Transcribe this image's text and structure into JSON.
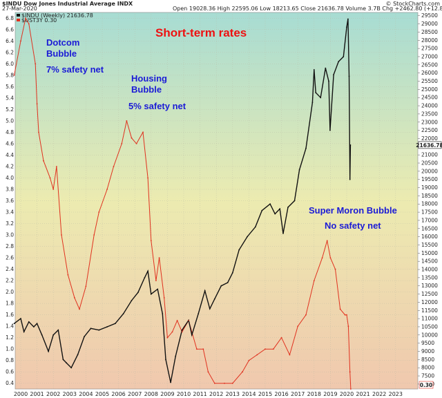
{
  "header": {
    "symbol_line": "$INDU Dow Jones Industrial Average INDX",
    "date": "27-Mar-2020",
    "ohlc": "Open 19028.36  High 22595.06  Low 18213.65  Close 21636.78  Volume 3.7B  Chg +2462.80 (+12.84%)",
    "credit": "© StockCharts.com"
  },
  "legend": {
    "indu": "$INDU (Weekly) 21636.78",
    "ust": "$UST3Y 0.30"
  },
  "colors": {
    "indu": "#111111",
    "rates": "#e0301e",
    "annotation_blue": "#1b1bd6",
    "annotation_red": "#ee1111",
    "bg_top": "#a7dcd3",
    "bg_mid": "#ecebb0",
    "bg_bottom": "#f0c8ae"
  },
  "annotations": {
    "title": "Short-term rates",
    "dotcom_1": "Dotcom",
    "dotcom_2": "Bubble",
    "dotcom_3": "7% safety net",
    "housing_1": "Housing",
    "housing_2": "Bubble",
    "housing_3": "5% safety net",
    "moron_1": "Super Moron Bubble",
    "moron_2": "No safety net"
  },
  "last_values": {
    "indu": "21636.78",
    "rate": "0.30"
  },
  "chart_data": {
    "type": "line",
    "x_ticks": [
      "2000",
      "2001",
      "2002",
      "2003",
      "2004",
      "2005",
      "2006",
      "2007",
      "2008",
      "2009",
      "2010",
      "2011",
      "2012",
      "2013",
      "2014",
      "2015",
      "2016",
      "2017",
      "2018",
      "2019",
      "2020",
      "2021",
      "2022",
      "2023"
    ],
    "left_axis": {
      "ticks": [
        "0.4",
        "0.6",
        "0.8",
        "1.0",
        "1.2",
        "1.4",
        "1.6",
        "1.8",
        "2.0",
        "2.2",
        "2.4",
        "2.6",
        "2.8",
        "3.0",
        "3.2",
        "3.4",
        "3.6",
        "3.8",
        "4.0",
        "4.2",
        "4.4",
        "4.6",
        "4.8",
        "5.0",
        "5.2",
        "5.4",
        "5.6",
        "5.8",
        "6.0",
        "6.2",
        "6.4",
        "6.6",
        "6.8"
      ],
      "range": [
        0.3,
        6.9
      ]
    },
    "right_axis": {
      "ticks": [
        "7000",
        "7500",
        "8000",
        "8500",
        "9000",
        "9500",
        "10000",
        "10500",
        "11000",
        "11500",
        "12000",
        "12500",
        "13000",
        "13500",
        "14000",
        "14500",
        "15000",
        "15500",
        "16000",
        "16500",
        "17000",
        "17500",
        "18000",
        "18500",
        "19000",
        "19500",
        "20000",
        "20500",
        "21000",
        "21500",
        "22000",
        "22500",
        "23000",
        "23500",
        "24000",
        "24500",
        "25000",
        "25500",
        "26000",
        "26500",
        "27000",
        "27500",
        "28000",
        "28500",
        "29000",
        "29500"
      ],
      "range": [
        6700,
        29700
      ],
      "scale": "linear"
    },
    "series": [
      {
        "name": "$INDU (Weekly) 21636.78",
        "axis": "right",
        "x": [
          1999.6,
          2000.0,
          2000.2,
          2000.5,
          2000.8,
          2001.0,
          2001.3,
          2001.7,
          2002.0,
          2002.3,
          2002.6,
          2002.8,
          2003.1,
          2003.5,
          2003.9,
          2004.3,
          2004.8,
          2005.3,
          2005.8,
          2006.3,
          2006.8,
          2007.2,
          2007.6,
          2007.8,
          2008.0,
          2008.4,
          2008.7,
          2008.9,
          2009.2,
          2009.5,
          2009.9,
          2010.3,
          2010.5,
          2010.9,
          2011.3,
          2011.6,
          2011.9,
          2012.3,
          2012.7,
          2013.0,
          2013.4,
          2013.9,
          2014.4,
          2014.8,
          2015.3,
          2015.6,
          2015.9,
          2016.1,
          2016.4,
          2016.8,
          2017.1,
          2017.5,
          2017.9,
          2018.0,
          2018.1,
          2018.4,
          2018.7,
          2018.9,
          2018.98,
          2019.2,
          2019.5,
          2019.8,
          2020.0,
          2020.08,
          2020.15,
          2020.2,
          2020.23
        ],
        "values": [
          10700,
          11000,
          10200,
          10800,
          10500,
          10700,
          10000,
          9000,
          10000,
          10300,
          8500,
          8300,
          8000,
          8800,
          9900,
          10400,
          10300,
          10500,
          10700,
          11300,
          12100,
          12600,
          13500,
          13900,
          12500,
          12800,
          11300,
          8500,
          7100,
          8700,
          10300,
          10900,
          10000,
          11300,
          12700,
          11600,
          12200,
          13000,
          13200,
          13800,
          15200,
          16000,
          16600,
          17600,
          18000,
          17400,
          17700,
          16200,
          17800,
          18200,
          20100,
          21400,
          24200,
          26200,
          24800,
          24500,
          26300,
          25500,
          22500,
          25900,
          26700,
          27000,
          28800,
          29300,
          25800,
          19500,
          21600
        ]
      },
      {
        "name": "$UST3Y 0.30",
        "axis": "left",
        "x": [
          1999.6,
          2000.0,
          2000.3,
          2000.5,
          2000.9,
          2001.0,
          2001.1,
          2001.4,
          2001.8,
          2002.0,
          2002.2,
          2002.5,
          2002.9,
          2003.3,
          2003.6,
          2004.0,
          2004.5,
          2004.8,
          2005.3,
          2005.7,
          2006.2,
          2006.5,
          2006.8,
          2007.1,
          2007.5,
          2007.8,
          2008.0,
          2008.3,
          2008.5,
          2008.8,
          2009.0,
          2009.3,
          2009.6,
          2009.9,
          2010.3,
          2010.8,
          2011.2,
          2011.5,
          2011.9,
          2012.5,
          2013.0,
          2013.6,
          2014.0,
          2014.5,
          2015.0,
          2015.5,
          2016.0,
          2016.5,
          2017.0,
          2017.5,
          2018.0,
          2018.5,
          2018.8,
          2019.0,
          2019.3,
          2019.6,
          2019.9,
          2020.0,
          2020.1,
          2020.2,
          2020.25
        ],
        "values": [
          5.8,
          6.4,
          6.8,
          6.7,
          6.0,
          5.3,
          4.8,
          4.3,
          4.0,
          3.8,
          4.2,
          3.0,
          2.3,
          1.9,
          1.7,
          2.1,
          3.0,
          3.4,
          3.8,
          4.2,
          4.6,
          5.0,
          4.7,
          4.6,
          4.8,
          4.0,
          2.9,
          2.2,
          2.6,
          1.9,
          1.2,
          1.3,
          1.5,
          1.3,
          1.5,
          1.0,
          1.0,
          0.6,
          0.4,
          0.4,
          0.4,
          0.6,
          0.8,
          0.9,
          1.0,
          1.0,
          1.2,
          0.9,
          1.4,
          1.6,
          2.2,
          2.6,
          2.9,
          2.6,
          2.4,
          1.7,
          1.6,
          1.6,
          1.4,
          0.6,
          0.3
        ]
      }
    ]
  }
}
